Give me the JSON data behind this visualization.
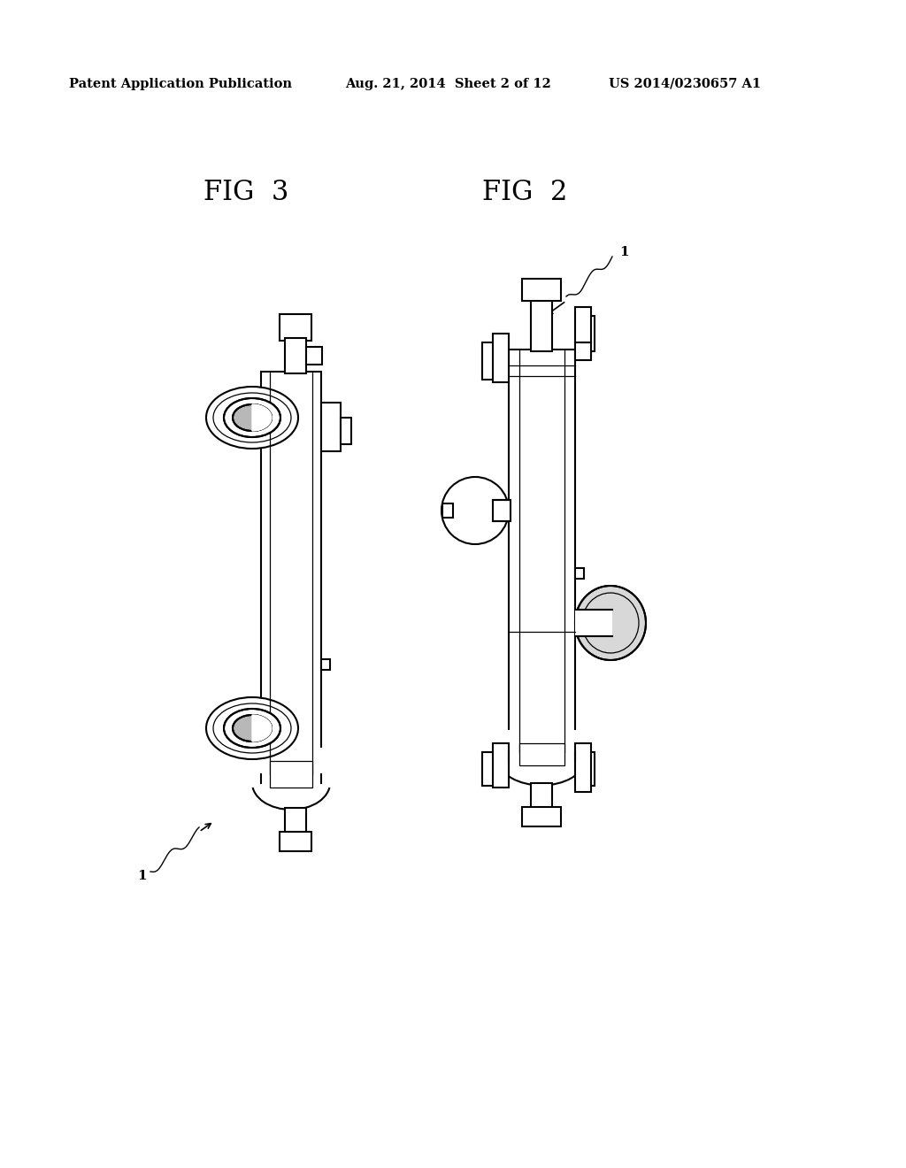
{
  "background_color": "#ffffff",
  "header_left": "Patent Application Publication",
  "header_mid": "Aug. 21, 2014  Sheet 2 of 12",
  "header_right": "US 2014/0230657 A1",
  "fig3_label": "FIG  3",
  "fig2_label": "FIG  2",
  "lc": "#000000",
  "lw": 1.5,
  "tlw": 0.9,
  "gray_fill": "#d0d0d0",
  "white_fill": "#ffffff"
}
